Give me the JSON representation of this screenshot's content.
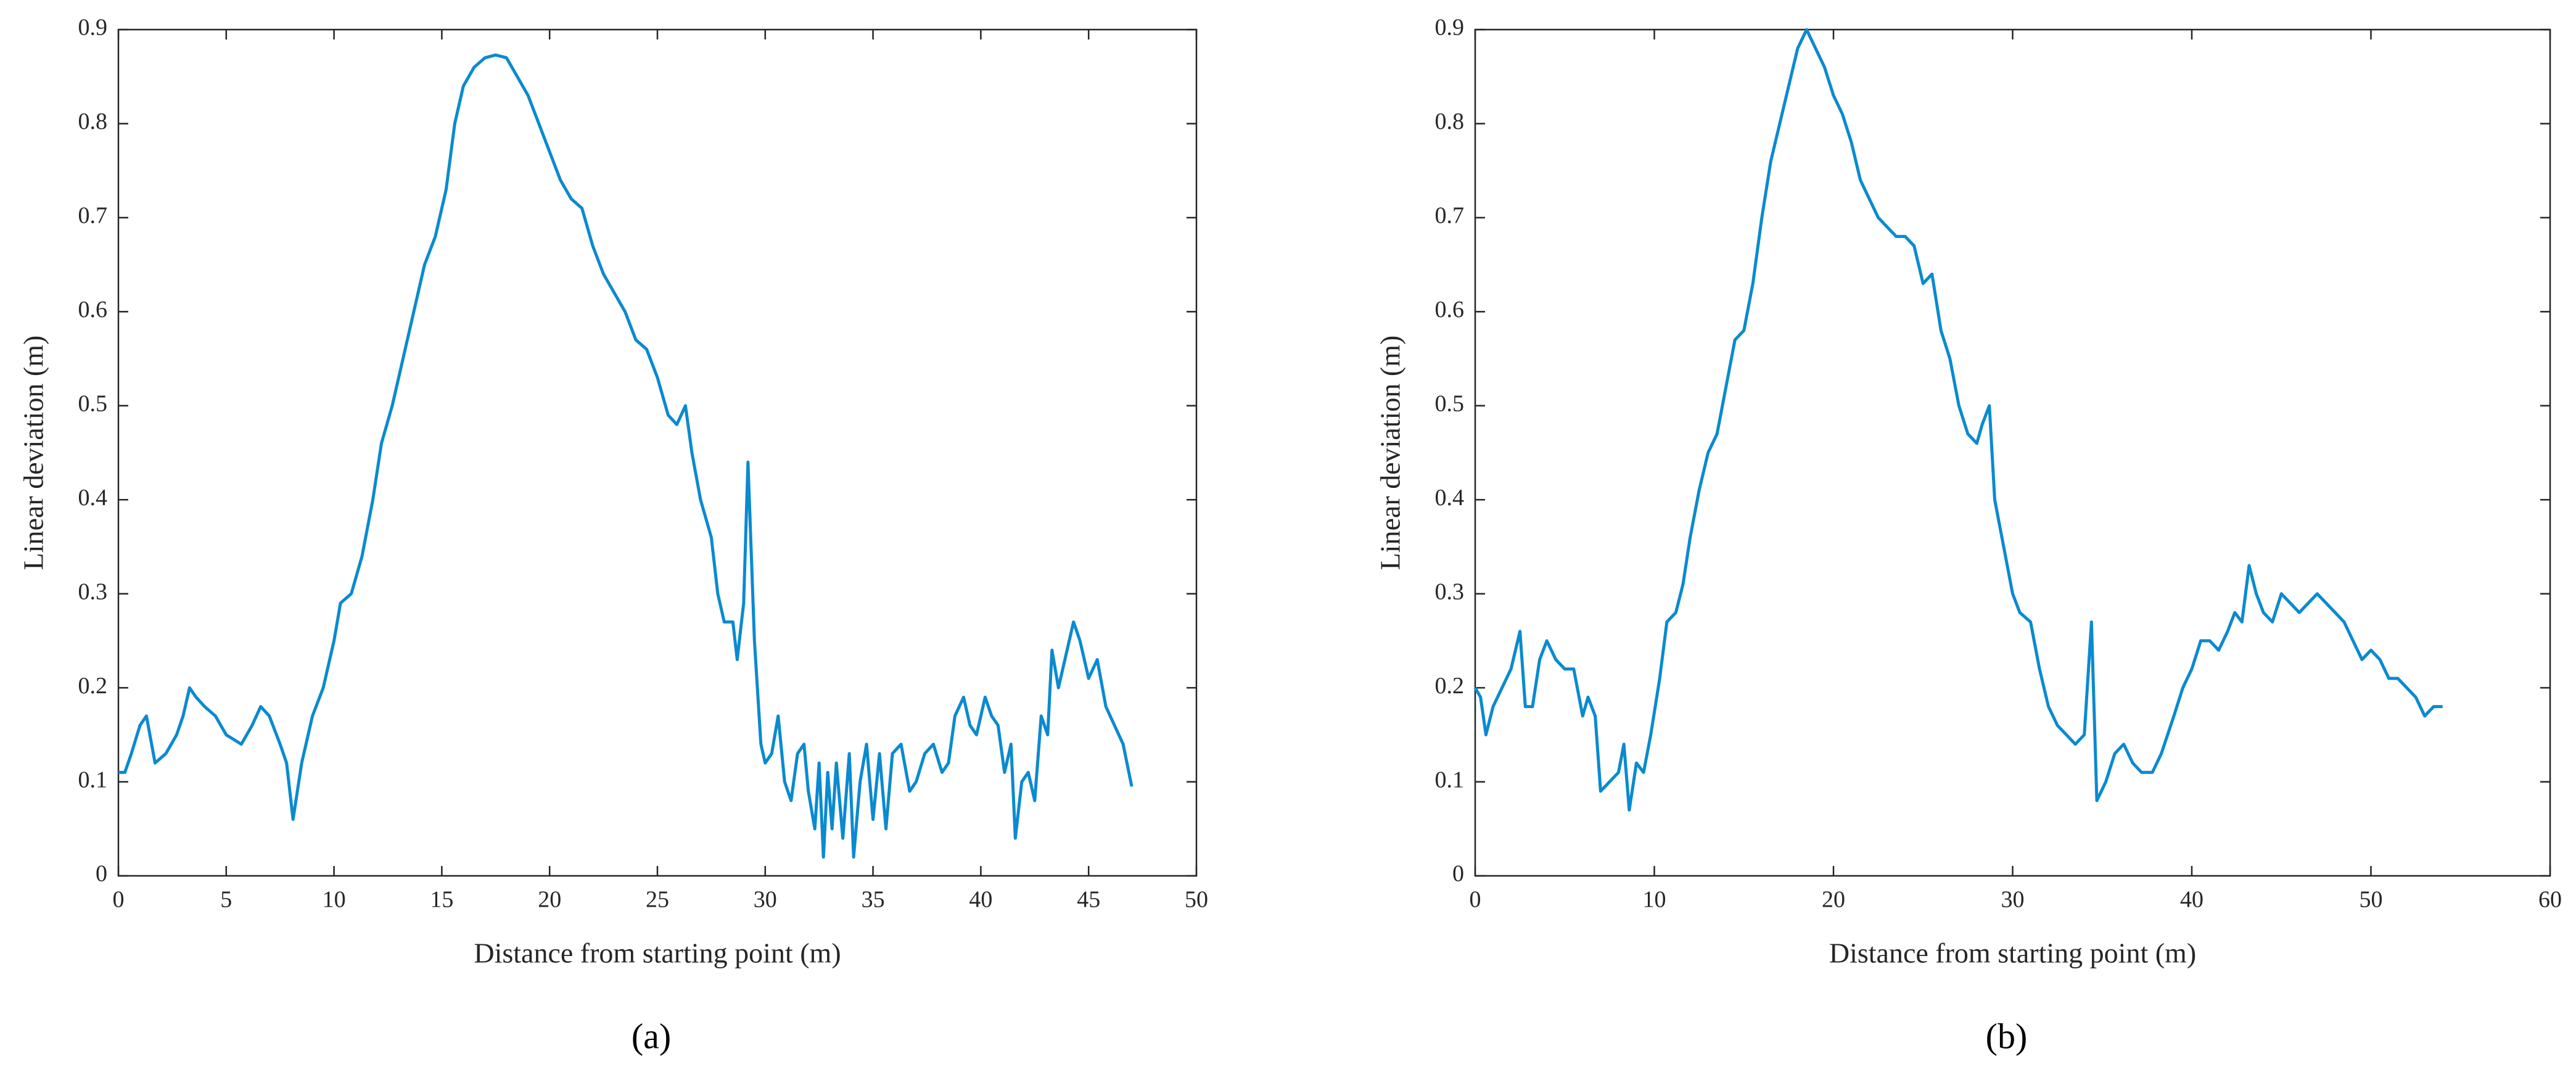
{
  "chart_data": [
    {
      "type": "line",
      "xlabel": "Distance from starting point (m)",
      "ylabel": "Linear deviation (m)",
      "caption": "(a)",
      "color": "#0a8ad0",
      "xlim": [
        0,
        50
      ],
      "xticks": [
        0,
        5,
        10,
        15,
        20,
        25,
        30,
        35,
        40,
        45,
        50
      ],
      "ylim": [
        0,
        0.9
      ],
      "yticks": [
        0,
        0.1,
        0.2,
        0.3,
        0.4,
        0.5,
        0.6,
        0.7,
        0.8,
        0.9
      ],
      "x": [
        0,
        0.3,
        0.6,
        1,
        1.3,
        1.7,
        2.2,
        2.7,
        3,
        3.3,
        3.6,
        4,
        4.5,
        5,
        5.7,
        6.2,
        6.6,
        7,
        7.5,
        7.8,
        8.1,
        8.5,
        9,
        9.5,
        10,
        10.3,
        10.8,
        11.3,
        11.8,
        12.2,
        12.7,
        13.2,
        13.7,
        14.2,
        14.7,
        15.2,
        15.6,
        16,
        16.5,
        17,
        17.5,
        18,
        18.5,
        19,
        19.5,
        20,
        20.5,
        21,
        21.5,
        22,
        22.5,
        23,
        23.5,
        24,
        24.5,
        25,
        25.5,
        25.9,
        26.3,
        26.6,
        27,
        27.5,
        27.8,
        28.1,
        28.5,
        28.7,
        29,
        29.2,
        29.5,
        29.8,
        30,
        30.3,
        30.6,
        30.9,
        31.2,
        31.5,
        31.8,
        32,
        32.3,
        32.5,
        32.7,
        32.9,
        33.1,
        33.3,
        33.6,
        33.9,
        34.1,
        34.4,
        34.7,
        35,
        35.3,
        35.6,
        35.9,
        36.3,
        36.7,
        37,
        37.4,
        37.8,
        38.2,
        38.5,
        38.8,
        39.2,
        39.5,
        39.8,
        40.2,
        40.5,
        40.8,
        41.1,
        41.4,
        41.6,
        41.9,
        42.2,
        42.5,
        42.8,
        43.1,
        43.3,
        43.6,
        44,
        44.3,
        44.6,
        45,
        45.4,
        45.8,
        46.2,
        46.6,
        47
      ],
      "values": [
        0.11,
        0.11,
        0.13,
        0.16,
        0.17,
        0.12,
        0.13,
        0.15,
        0.17,
        0.2,
        0.19,
        0.18,
        0.17,
        0.15,
        0.14,
        0.16,
        0.18,
        0.17,
        0.14,
        0.12,
        0.06,
        0.12,
        0.17,
        0.2,
        0.25,
        0.29,
        0.3,
        0.34,
        0.4,
        0.46,
        0.5,
        0.55,
        0.6,
        0.65,
        0.68,
        0.73,
        0.8,
        0.84,
        0.86,
        0.87,
        0.873,
        0.87,
        0.85,
        0.83,
        0.8,
        0.77,
        0.74,
        0.72,
        0.71,
        0.67,
        0.64,
        0.62,
        0.6,
        0.57,
        0.56,
        0.53,
        0.49,
        0.48,
        0.5,
        0.45,
        0.4,
        0.36,
        0.3,
        0.27,
        0.27,
        0.23,
        0.29,
        0.44,
        0.25,
        0.14,
        0.12,
        0.13,
        0.17,
        0.1,
        0.08,
        0.13,
        0.14,
        0.09,
        0.05,
        0.12,
        0.02,
        0.11,
        0.05,
        0.12,
        0.04,
        0.13,
        0.02,
        0.1,
        0.14,
        0.06,
        0.13,
        0.05,
        0.13,
        0.14,
        0.09,
        0.1,
        0.13,
        0.14,
        0.11,
        0.12,
        0.17,
        0.19,
        0.16,
        0.15,
        0.19,
        0.17,
        0.16,
        0.11,
        0.14,
        0.04,
        0.1,
        0.11,
        0.08,
        0.17,
        0.15,
        0.24,
        0.2,
        0.24,
        0.27,
        0.25,
        0.21,
        0.23,
        0.18,
        0.16,
        0.14,
        0.095
      ]
    },
    {
      "type": "line",
      "xlabel": "Distance from starting point (m)",
      "ylabel": "Linear deviation (m)",
      "caption": "(b)",
      "color": "#0a8ad0",
      "xlim": [
        0,
        60
      ],
      "xticks": [
        0,
        10,
        20,
        30,
        40,
        50,
        60
      ],
      "ylim": [
        0,
        0.9
      ],
      "yticks": [
        0,
        0.1,
        0.2,
        0.3,
        0.4,
        0.5,
        0.6,
        0.7,
        0.8,
        0.9
      ],
      "x": [
        0,
        0.3,
        0.6,
        1,
        1.5,
        2,
        2.5,
        2.8,
        3.2,
        3.6,
        4,
        4.5,
        5,
        5.5,
        6,
        6.3,
        6.7,
        7,
        7.5,
        8,
        8.3,
        8.6,
        9,
        9.4,
        9.8,
        10.3,
        10.7,
        11.2,
        11.6,
        12,
        12.5,
        13,
        13.5,
        14,
        14.5,
        15,
        15.5,
        16,
        16.5,
        17,
        17.5,
        18,
        18.5,
        19,
        19.5,
        20,
        20.5,
        21,
        21.5,
        22,
        22.5,
        23,
        23.5,
        24,
        24.5,
        25,
        25.5,
        26,
        26.5,
        27,
        27.5,
        28,
        28.3,
        28.7,
        29,
        29.5,
        30,
        30.4,
        31,
        31.5,
        32,
        32.5,
        33,
        33.5,
        34,
        34.4,
        34.7,
        35.2,
        35.7,
        36.2,
        36.7,
        37.2,
        37.8,
        38.3,
        39,
        39.5,
        40,
        40.5,
        41,
        41.5,
        42,
        42.4,
        42.8,
        43.2,
        43.6,
        44,
        44.5,
        45,
        45.5,
        46,
        46.5,
        47,
        47.5,
        48,
        48.5,
        49,
        49.5,
        50,
        50.5,
        51,
        51.5,
        52,
        52.5,
        53,
        53.5,
        54
      ],
      "values": [
        0.2,
        0.19,
        0.15,
        0.18,
        0.2,
        0.22,
        0.26,
        0.18,
        0.18,
        0.23,
        0.25,
        0.23,
        0.22,
        0.22,
        0.17,
        0.19,
        0.17,
        0.09,
        0.1,
        0.11,
        0.14,
        0.07,
        0.12,
        0.11,
        0.15,
        0.21,
        0.27,
        0.28,
        0.31,
        0.36,
        0.41,
        0.45,
        0.47,
        0.52,
        0.57,
        0.58,
        0.63,
        0.7,
        0.76,
        0.8,
        0.84,
        0.88,
        0.9,
        0.88,
        0.86,
        0.83,
        0.81,
        0.78,
        0.74,
        0.72,
        0.7,
        0.69,
        0.68,
        0.68,
        0.67,
        0.63,
        0.64,
        0.58,
        0.55,
        0.5,
        0.47,
        0.46,
        0.48,
        0.5,
        0.4,
        0.35,
        0.3,
        0.28,
        0.27,
        0.22,
        0.18,
        0.16,
        0.15,
        0.14,
        0.15,
        0.27,
        0.08,
        0.1,
        0.13,
        0.14,
        0.12,
        0.11,
        0.11,
        0.13,
        0.17,
        0.2,
        0.22,
        0.25,
        0.25,
        0.24,
        0.26,
        0.28,
        0.27,
        0.33,
        0.3,
        0.28,
        0.27,
        0.3,
        0.29,
        0.28,
        0.29,
        0.3,
        0.29,
        0.28,
        0.27,
        0.25,
        0.23,
        0.24,
        0.23,
        0.21,
        0.21,
        0.2,
        0.19,
        0.17,
        0.18,
        0.18
      ]
    }
  ]
}
